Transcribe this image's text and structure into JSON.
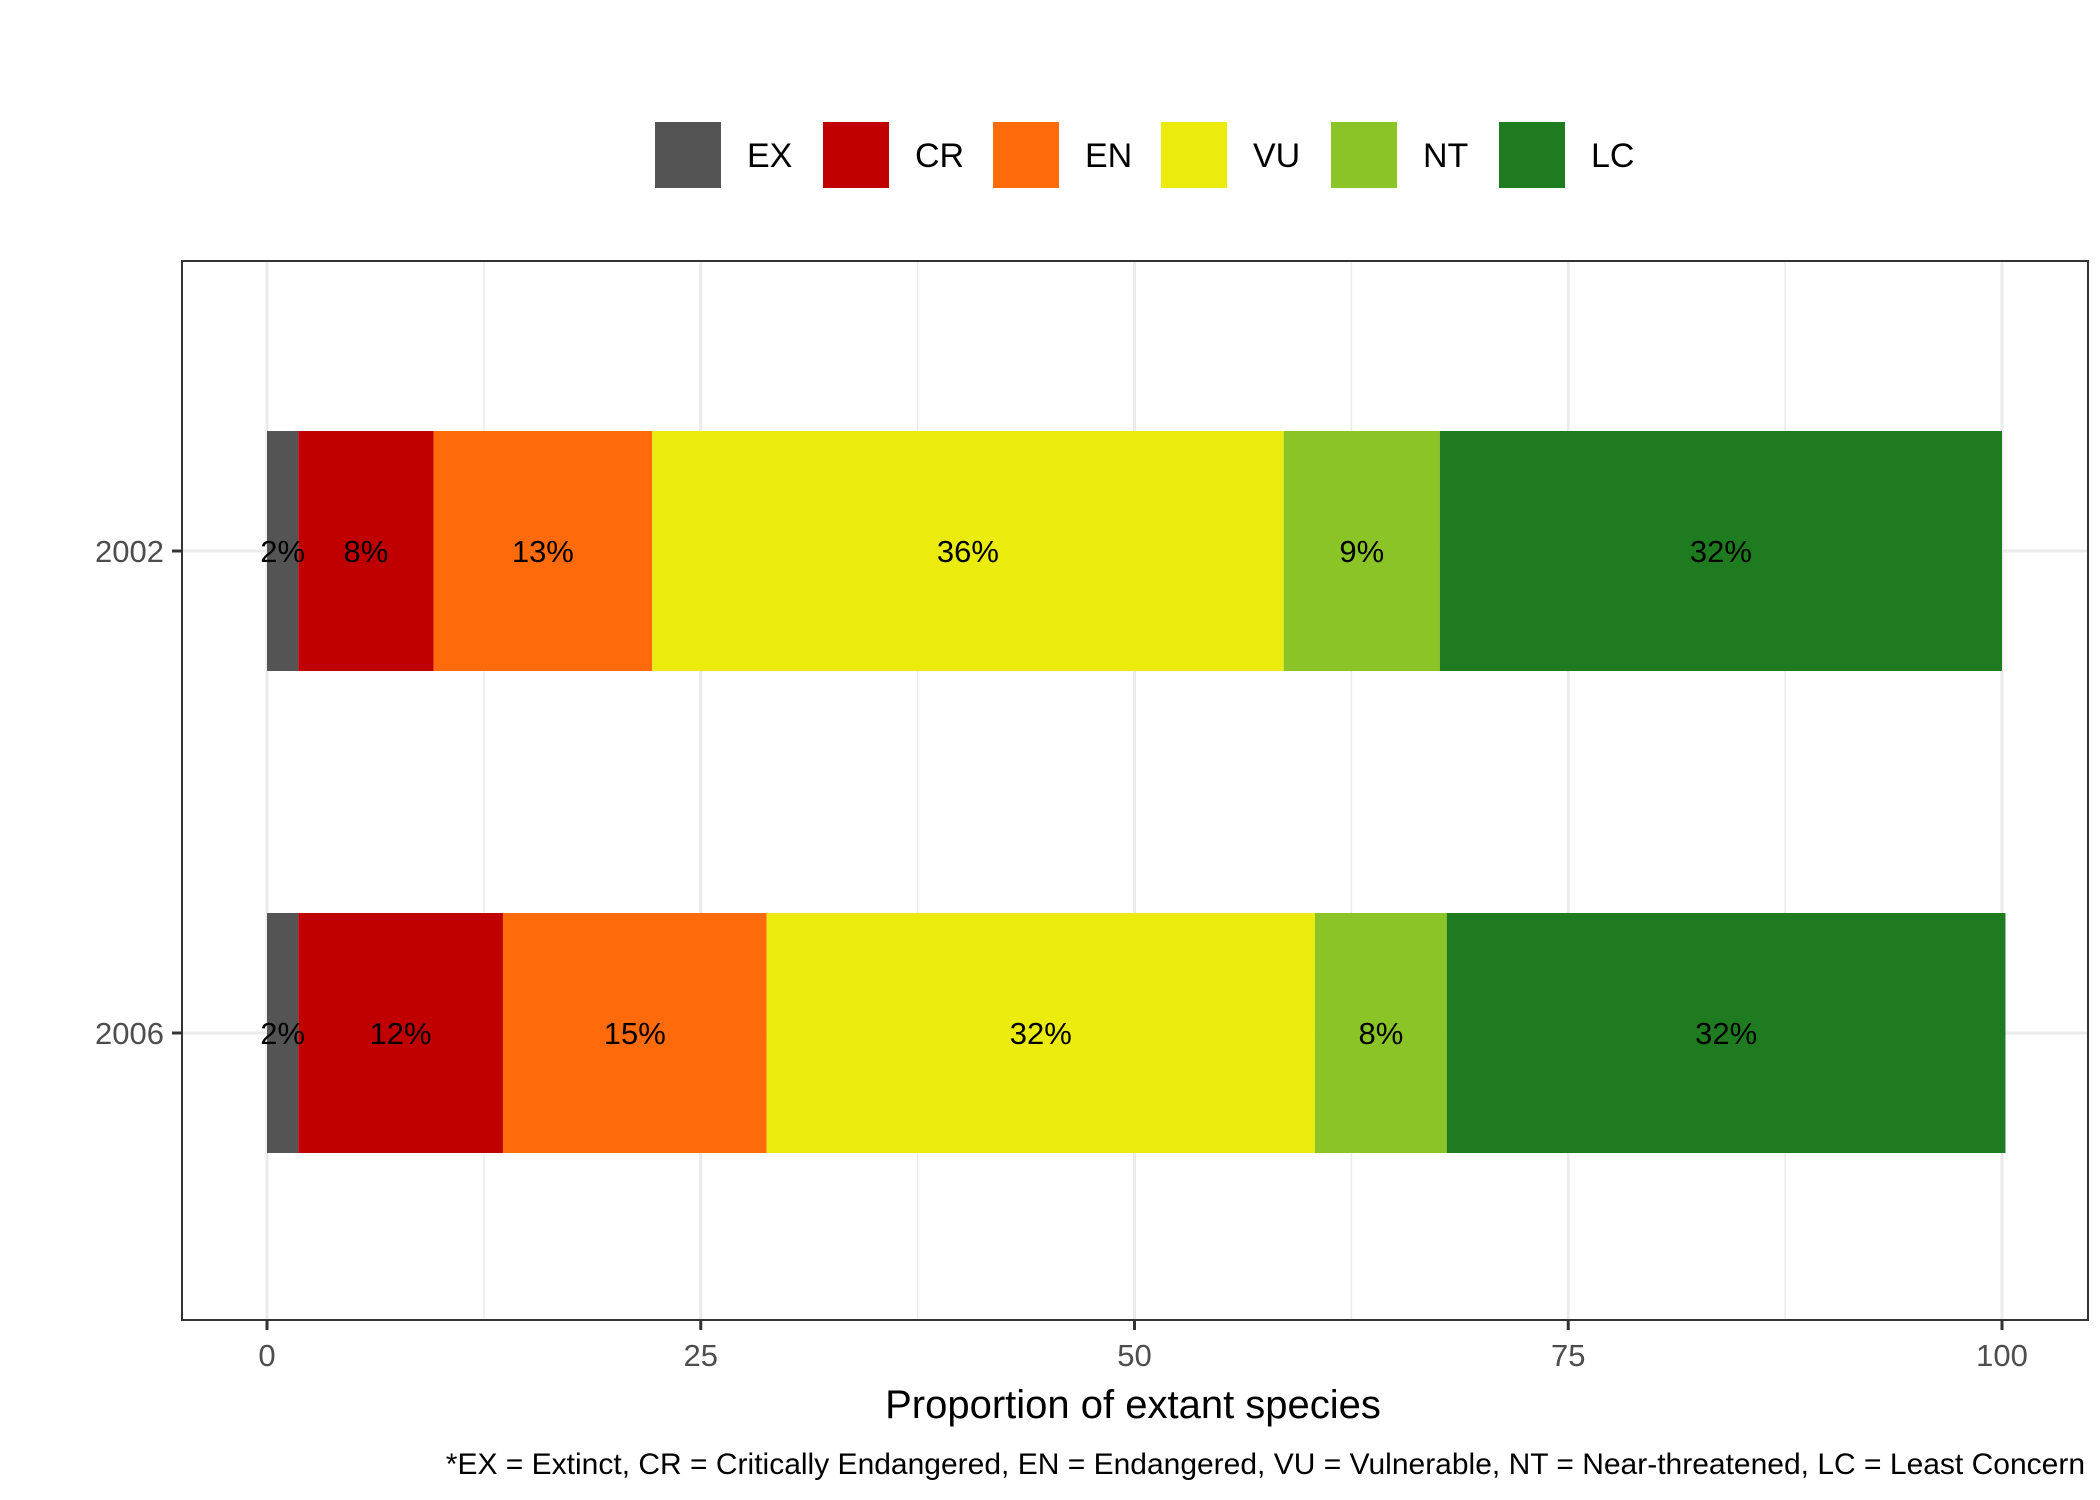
{
  "chart_data": {
    "type": "bar",
    "orientation": "horizontal",
    "stacked": true,
    "categories": [
      "2002",
      "2006"
    ],
    "series": [
      {
        "name": "EX",
        "color": "#545454",
        "values": [
          1.8,
          1.8
        ],
        "labels": [
          "2%",
          "2%"
        ]
      },
      {
        "name": "CR",
        "color": "#C00000",
        "values": [
          7.8,
          11.8
        ],
        "labels": [
          "8%",
          "12%"
        ]
      },
      {
        "name": "EN",
        "color": "#FF6A0A",
        "values": [
          12.6,
          15.2
        ],
        "labels": [
          "13%",
          "15%"
        ]
      },
      {
        "name": "VU",
        "color": "#EBEB0E",
        "values": [
          36.4,
          31.6
        ],
        "labels": [
          "36%",
          "32%"
        ]
      },
      {
        "name": "NT",
        "color": "#8AC426",
        "values": [
          9.0,
          7.6
        ],
        "labels": [
          "9%",
          "8%"
        ]
      },
      {
        "name": "LC",
        "color": "#1F7B1F",
        "values": [
          32.4,
          32.2
        ],
        "labels": [
          "32%",
          "32%"
        ]
      }
    ],
    "title": "",
    "xlabel": "Proportion of extant species",
    "ylabel": "",
    "xlim": [
      0,
      100
    ],
    "xticks": [
      0,
      25,
      50,
      75,
      100
    ],
    "xtick_labels": [
      "0",
      "25",
      "50",
      "75",
      "100"
    ],
    "grid": true,
    "legend_position": "top",
    "caption": "*EX = Extinct, CR = Critically Endangered, EN = Endangered, VU = Vulnerable, NT = Near-threatened, LC = Least Concern"
  }
}
